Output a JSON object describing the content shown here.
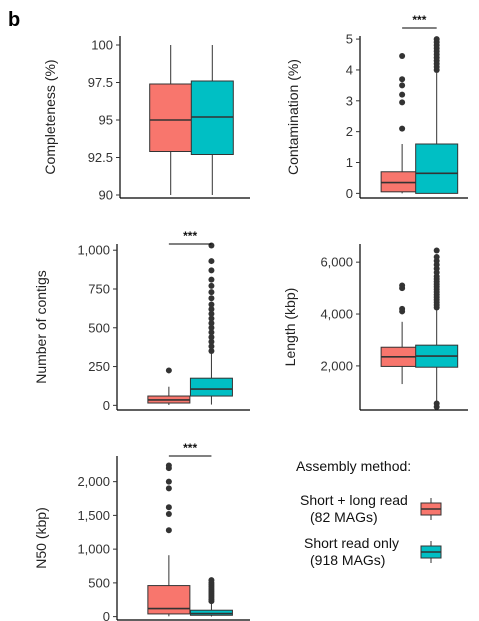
{
  "figure": {
    "panel_letter": "b"
  },
  "colors": {
    "short_long": "#F8766D",
    "short_only": "#00BFC4",
    "outline": "#333333",
    "outlier": "#333333"
  },
  "legend": {
    "title": "Assembly method:",
    "entries": [
      {
        "line1": "Short + long read",
        "line2": "(82 MAGs)",
        "color": "#F8766D"
      },
      {
        "line1": "Short read only",
        "line2": "(918 MAGs)",
        "color": "#00BFC4"
      }
    ]
  },
  "chart_data": [
    {
      "type": "boxplot",
      "ylabel": "Completeness (%)",
      "ylim": [
        89.8,
        100.6
      ],
      "yticks": [
        90,
        92.5,
        95,
        97.5,
        100
      ],
      "ytick_labels": [
        "90",
        "92.5",
        "95",
        "97.5",
        "100"
      ],
      "significance": "",
      "series": [
        {
          "name": "Short + long read",
          "whisker_low": 90.0,
          "q1": 92.9,
          "median": 95.0,
          "q3": 97.4,
          "whisker_high": 100.0,
          "outliers": []
        },
        {
          "name": "Short read only",
          "whisker_low": 90.0,
          "q1": 92.7,
          "median": 95.2,
          "q3": 97.6,
          "whisker_high": 100.0,
          "outliers": []
        }
      ]
    },
    {
      "type": "boxplot",
      "ylabel": "Contamination (%)",
      "ylim": [
        -0.15,
        5.1
      ],
      "yticks": [
        0,
        1,
        2,
        3,
        4,
        5
      ],
      "ytick_labels": [
        "0",
        "1",
        "2",
        "3",
        "4",
        "5"
      ],
      "significance": "***",
      "series": [
        {
          "name": "Short + long read",
          "whisker_low": 0.0,
          "q1": 0.05,
          "median": 0.35,
          "q3": 0.7,
          "whisker_high": 1.6,
          "outliers": [
            2.1,
            2.95,
            3.2,
            3.5,
            3.7,
            4.45
          ]
        },
        {
          "name": "Short read only",
          "whisker_low": 0.0,
          "q1": 0.0,
          "median": 0.65,
          "q3": 1.6,
          "whisker_high": 3.9,
          "outliers": [
            4.0,
            4.1,
            4.2,
            4.3,
            4.4,
            4.5,
            4.6,
            4.7,
            4.8,
            4.9,
            5.0
          ]
        }
      ]
    },
    {
      "type": "boxplot",
      "ylabel": "Number of contigs",
      "ylim": [
        -30,
        1040
      ],
      "yticks": [
        0,
        250,
        500,
        750,
        1000
      ],
      "ytick_labels": [
        "0",
        "250",
        "500",
        "750",
        "1,000"
      ],
      "significance": "***",
      "series": [
        {
          "name": "Short + long read",
          "whisker_low": 2,
          "q1": 15,
          "median": 35,
          "q3": 60,
          "whisker_high": 120,
          "outliers": [
            225
          ]
        },
        {
          "name": "Short read only",
          "whisker_low": 5,
          "q1": 60,
          "median": 105,
          "q3": 175,
          "whisker_high": 340,
          "outliers": [
            350,
            380,
            410,
            440,
            470,
            500,
            530,
            560,
            590,
            620,
            650,
            690,
            730,
            770,
            810,
            870,
            930,
            1030
          ]
        }
      ]
    },
    {
      "type": "boxplot",
      "ylabel": "Length (kbp)",
      "ylim": [
        300,
        6700
      ],
      "yticks": [
        2000,
        4000,
        6000
      ],
      "ytick_labels": [
        "2,000",
        "4,000",
        "6,000"
      ],
      "significance": "",
      "series": [
        {
          "name": "Short + long read",
          "whisker_low": 1300,
          "q1": 1980,
          "median": 2350,
          "q3": 2720,
          "whisker_high": 3700,
          "outliers": [
            4100,
            4200,
            5000,
            5100
          ]
        },
        {
          "name": "Short read only",
          "whisker_low": 650,
          "q1": 1950,
          "median": 2380,
          "q3": 2800,
          "whisker_high": 4150,
          "outliers": [
            420,
            550,
            4250,
            4350,
            4450,
            4550,
            4650,
            4750,
            4850,
            4950,
            5050,
            5150,
            5250,
            5350,
            5450,
            5600,
            5750,
            5900,
            6050,
            6200,
            6450
          ]
        }
      ]
    },
    {
      "type": "boxplot",
      "ylabel": "N50 (kbp)",
      "ylim": [
        -50,
        2380
      ],
      "yticks": [
        0,
        500,
        1000,
        1500,
        2000
      ],
      "ytick_labels": [
        "0",
        "500",
        "1,000",
        "1,500",
        "2,000"
      ],
      "significance": "***",
      "series": [
        {
          "name": "Short + long read",
          "whisker_low": 5,
          "q1": 40,
          "median": 120,
          "q3": 460,
          "whisker_high": 910,
          "outliers": [
            1280,
            1520,
            1620,
            1900,
            2000,
            2200,
            2240
          ]
        },
        {
          "name": "Short read only",
          "whisker_low": 2,
          "q1": 20,
          "median": 45,
          "q3": 95,
          "whisker_high": 210,
          "outliers": [
            230,
            260,
            290,
            320,
            350,
            380,
            410,
            440,
            470,
            500,
            540
          ]
        }
      ]
    }
  ]
}
